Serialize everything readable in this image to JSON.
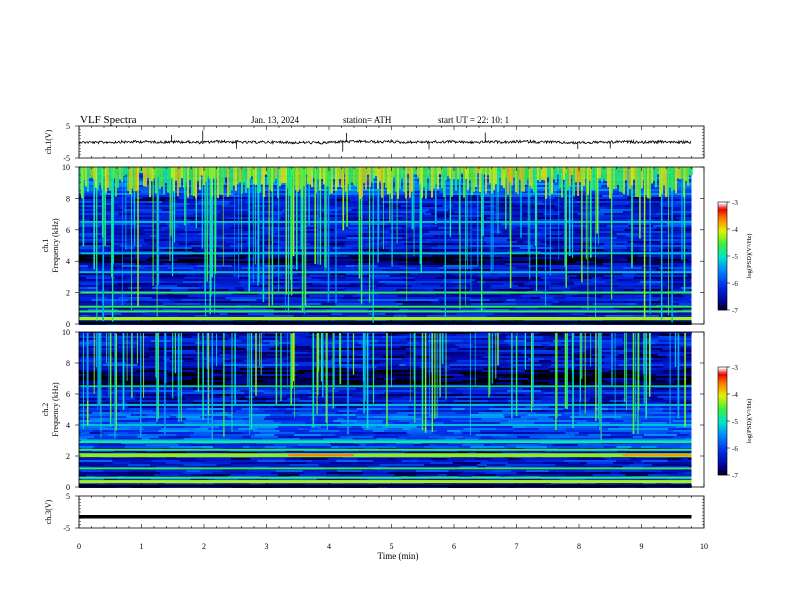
{
  "header": {
    "title": "VLF  Spectra",
    "date": "Jan.  13,  2024",
    "station": "station= ATH",
    "start": "start  UT  =    22: 10: 1"
  },
  "chart_data": [
    {
      "type": "line",
      "panel": "ch1",
      "ylabel": "ch.1(V)",
      "ylim": [
        -5,
        5
      ],
      "yticks": [
        "5",
        "-5"
      ],
      "x_range_min": [
        0,
        9.8
      ],
      "baseline_value": 0,
      "spikes": [
        {
          "x": 1.48,
          "y": 2.2
        },
        {
          "x": 1.98,
          "y": 3.6
        },
        {
          "x": 2.52,
          "y": -2.1
        },
        {
          "x": 4.22,
          "y": -3.0
        },
        {
          "x": 4.28,
          "y": 2.8
        },
        {
          "x": 5.6,
          "y": -2.3
        },
        {
          "x": 6.5,
          "y": 2.9
        },
        {
          "x": 7.98,
          "y": -2.2
        },
        {
          "x": 8.5,
          "y": -2.0
        }
      ]
    },
    {
      "type": "heatmap",
      "panel": "ch2",
      "ylabel": "ch.1\nFrequency  (kHz)",
      "ylim": [
        0,
        10
      ],
      "yticks": [
        "0",
        "2",
        "4",
        "6",
        "8",
        "10"
      ],
      "colorbar": {
        "label": "log(PSD)(V²/Hz)",
        "range": [
          -7,
          -3
        ],
        "ticks": [
          "-3",
          "-4",
          "-5",
          "-6",
          "-7"
        ]
      },
      "description_bands_khz": [
        0.3,
        0.8,
        1.1,
        2.0,
        3.3,
        4.5,
        6.5
      ],
      "background_level": -6.3
    },
    {
      "type": "heatmap",
      "panel": "ch3",
      "ylabel": "ch.2\nFrequency  (kHz)",
      "ylim": [
        0,
        10
      ],
      "yticks": [
        "0",
        "2",
        "4",
        "6",
        "8",
        "10"
      ],
      "colorbar": {
        "label": "log(PSD)(V²/Hz)",
        "range": [
          -7,
          -3
        ],
        "ticks": [
          "-3",
          "-4",
          "-5",
          "-6",
          "-7"
        ]
      },
      "description_bands_khz": [
        0.6,
        1.2,
        2.0,
        2.4,
        3.0,
        4.0,
        5.3,
        6.5
      ],
      "background_level": -6.3
    },
    {
      "type": "line",
      "panel": "ch4",
      "ylabel": "ch.3(V)",
      "ylim": [
        -5,
        5
      ],
      "yticks": [
        "5",
        "-5"
      ],
      "x_range_min": [
        0,
        9.8
      ],
      "baseline_value": -1.5
    }
  ],
  "x_axis": {
    "label": "Time  (min)",
    "range": [
      0,
      10
    ],
    "ticks": [
      "0",
      "1",
      "2",
      "3",
      "4",
      "5",
      "6",
      "7",
      "8",
      "9",
      "10"
    ]
  }
}
